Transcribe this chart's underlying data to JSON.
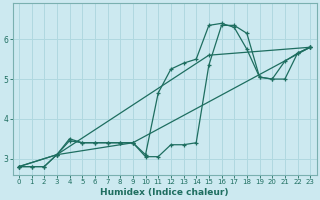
{
  "xlabel": "Humidex (Indice chaleur)",
  "background_color": "#cce9f0",
  "line_color": "#1e6e60",
  "grid_color": "#b0d8e0",
  "xlim": [
    -0.5,
    23.5
  ],
  "ylim": [
    2.6,
    6.9
  ],
  "xticks": [
    0,
    1,
    2,
    3,
    4,
    5,
    6,
    7,
    8,
    9,
    10,
    11,
    12,
    13,
    14,
    15,
    16,
    17,
    18,
    19,
    20,
    21,
    22,
    23
  ],
  "yticks": [
    3,
    4,
    5,
    6
  ],
  "series": [
    {
      "x": [
        0,
        1,
        2,
        3,
        4,
        5,
        6,
        7,
        8,
        9,
        10,
        11,
        12,
        13,
        14,
        15,
        16,
        17,
        18,
        19,
        20,
        21,
        22,
        23
      ],
      "y": [
        2.8,
        2.8,
        2.8,
        3.1,
        3.45,
        3.4,
        3.4,
        3.4,
        3.4,
        3.4,
        3.1,
        4.65,
        5.25,
        5.4,
        5.5,
        6.35,
        6.4,
        6.3,
        5.75,
        5.05,
        5.0,
        5.45,
        5.65,
        5.8
      ]
    },
    {
      "x": [
        0,
        1,
        2,
        3,
        4,
        5,
        6,
        7,
        8,
        9,
        10,
        11,
        12,
        13,
        14,
        15,
        16,
        17,
        18,
        19,
        20,
        21,
        22,
        23
      ],
      "y": [
        2.8,
        2.8,
        2.8,
        3.1,
        3.5,
        3.4,
        3.4,
        3.4,
        3.4,
        3.4,
        3.05,
        3.05,
        3.35,
        3.35,
        3.4,
        5.35,
        6.35,
        6.35,
        6.15,
        5.05,
        5.0,
        5.0,
        5.65,
        5.8
      ]
    },
    {
      "x": [
        0,
        3,
        15,
        23
      ],
      "y": [
        2.8,
        3.1,
        5.6,
        5.8
      ]
    },
    {
      "x": [
        0,
        3,
        9,
        23
      ],
      "y": [
        2.8,
        3.1,
        3.4,
        5.8
      ]
    }
  ]
}
